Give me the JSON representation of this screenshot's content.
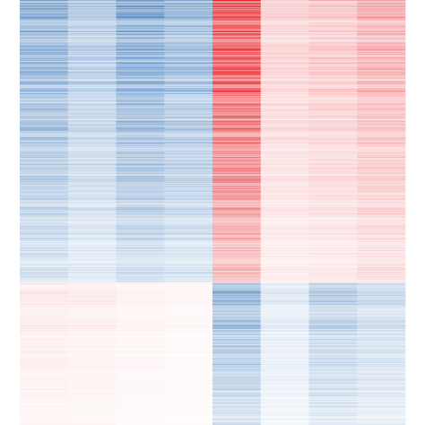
{
  "chart_data": {
    "type": "heatmap",
    "title": "",
    "xlabel": "",
    "ylabel": "",
    "legend": "none",
    "grid": false,
    "colormap": {
      "negative": "#2b6bb3",
      "zero": "#ffffff",
      "positive": "#e8262c"
    },
    "value_range": [
      -1,
      1
    ],
    "row_count": 460,
    "column_count": 8,
    "row_groups": [
      {
        "rows": 306,
        "column_mean_values": [
          -0.34,
          -0.24,
          -0.38,
          -0.31,
          0.52,
          0.14,
          0.17,
          0.24
        ]
      },
      {
        "rows": 154,
        "column_mean_values": [
          0.07,
          0.06,
          0.04,
          0.03,
          -0.33,
          -0.1,
          -0.24,
          -0.18
        ]
      }
    ]
  }
}
